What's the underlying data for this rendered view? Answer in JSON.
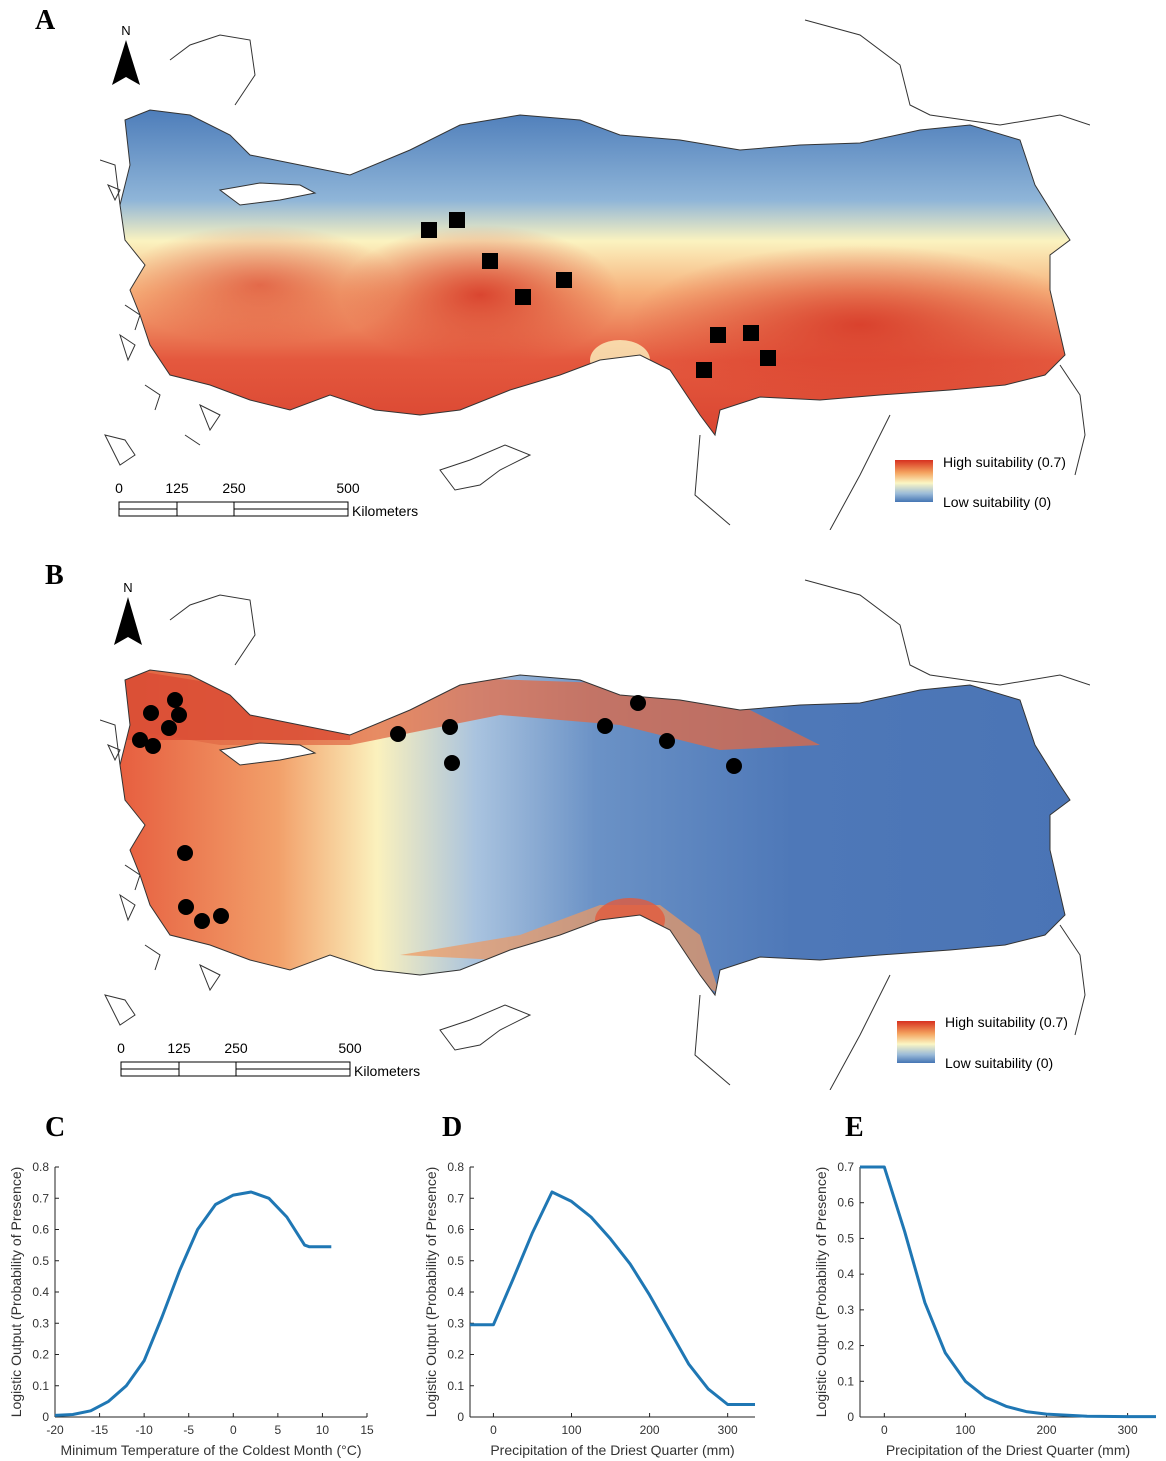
{
  "panels": {
    "A": {
      "letter": "A",
      "north": "N",
      "scale": {
        "ticks": [
          "0",
          "125",
          "250",
          "500"
        ],
        "unit": "Kilometers"
      },
      "legend": {
        "high": "High suitability (0.7)",
        "low": "Low suitability (0)"
      },
      "marker": "square",
      "colors": {
        "high": "#d7301f",
        "mid": "#fff7bc",
        "low": "#4575b4"
      }
    },
    "B": {
      "letter": "B",
      "north": "N",
      "scale": {
        "ticks": [
          "0",
          "125",
          "250",
          "500"
        ],
        "unit": "Kilometers"
      },
      "legend": {
        "high": "High suitability (0.7)",
        "low": "Low suitability (0)"
      },
      "marker": "circle",
      "colors": {
        "high": "#d7301f",
        "mid": "#fff7bc",
        "low": "#4575b4"
      }
    },
    "C": {
      "letter": "C"
    },
    "D": {
      "letter": "D"
    },
    "E": {
      "letter": "E"
    }
  },
  "chart_data": [
    {
      "type": "line",
      "panel": "C",
      "xlabel": "Minimum Temperature of the Coldest Month (°C)",
      "ylabel": "Logistic Output (Probability of Presence)",
      "xlim": [
        -20,
        15
      ],
      "ylim": [
        0,
        0.8
      ],
      "xticks": [
        -20,
        -15,
        -10,
        -5,
        0,
        5,
        10,
        15
      ],
      "yticks": [
        0,
        0.1,
        0.2,
        0.3,
        0.4,
        0.5,
        0.6,
        0.7,
        0.8
      ],
      "color": "#1f77b4",
      "x": [
        -20,
        -18,
        -16,
        -14,
        -12,
        -10,
        -8,
        -6,
        -4,
        -2,
        0,
        2,
        4,
        6,
        8,
        8.5,
        11
      ],
      "y": [
        0.005,
        0.008,
        0.02,
        0.05,
        0.1,
        0.18,
        0.32,
        0.47,
        0.6,
        0.68,
        0.71,
        0.72,
        0.7,
        0.64,
        0.55,
        0.545,
        0.545
      ]
    },
    {
      "type": "line",
      "panel": "D",
      "xlabel": "Precipitation of the Driest Quarter (mm)",
      "ylabel": "Logistic Output (Probability of Presence)",
      "xlim": [
        -30,
        335
      ],
      "ylim": [
        0,
        0.8
      ],
      "xticks": [
        0,
        100,
        200,
        300
      ],
      "yticks": [
        0,
        0.1,
        0.2,
        0.3,
        0.4,
        0.5,
        0.6,
        0.7,
        0.8
      ],
      "color": "#1f77b4",
      "x": [
        -30,
        0,
        25,
        50,
        75,
        100,
        125,
        150,
        175,
        200,
        225,
        250,
        275,
        300,
        335
      ],
      "y": [
        0.295,
        0.295,
        0.44,
        0.59,
        0.72,
        0.69,
        0.64,
        0.57,
        0.49,
        0.39,
        0.28,
        0.17,
        0.09,
        0.04,
        0.04
      ]
    },
    {
      "type": "line",
      "panel": "E",
      "xlabel": "Precipitation of the Driest Quarter (mm)",
      "ylabel": "Logistic Output (Probability of Presence)",
      "xlim": [
        -30,
        335
      ],
      "ylim": [
        0,
        0.7
      ],
      "xticks": [
        0,
        100,
        200,
        300
      ],
      "yticks": [
        0,
        0.1,
        0.2,
        0.3,
        0.4,
        0.5,
        0.6,
        0.7
      ],
      "color": "#1f77b4",
      "x": [
        -30,
        0,
        25,
        50,
        75,
        100,
        125,
        150,
        175,
        200,
        250,
        300,
        335
      ],
      "y": [
        0.7,
        0.7,
        0.52,
        0.32,
        0.18,
        0.1,
        0.055,
        0.03,
        0.015,
        0.008,
        0.002,
        0.001,
        0.001
      ]
    }
  ]
}
